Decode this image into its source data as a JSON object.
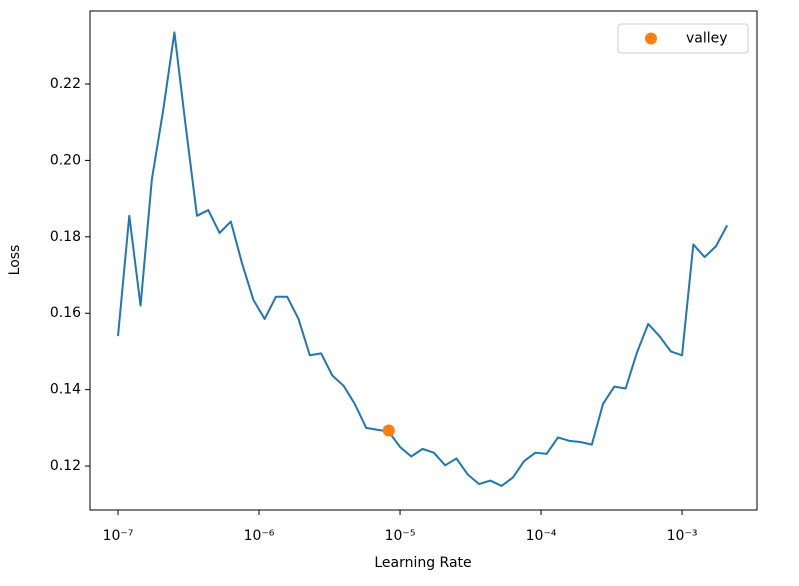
{
  "chart_data": {
    "type": "line",
    "xlabel": "Learning Rate",
    "ylabel": "Loss",
    "xscale": "log",
    "x": [
      1e-07,
      1.202e-07,
      1.445e-07,
      1.738e-07,
      2.089e-07,
      2.512e-07,
      3.02e-07,
      3.631e-07,
      4.365e-07,
      5.248e-07,
      6.31e-07,
      7.586e-07,
      9.12e-07,
      1.096e-06,
      1.318e-06,
      1.585e-06,
      1.905e-06,
      2.291e-06,
      2.754e-06,
      3.311e-06,
      3.981e-06,
      4.786e-06,
      5.754e-06,
      6.918e-06,
      8.318e-06,
      1e-05,
      1.202e-05,
      1.445e-05,
      1.738e-05,
      2.089e-05,
      2.512e-05,
      3.02e-05,
      3.631e-05,
      4.365e-05,
      5.248e-05,
      6.31e-05,
      7.586e-05,
      9.12e-05,
      0.0001096,
      0.0001318,
      0.0001585,
      0.0001905,
      0.0002291,
      0.0002754,
      0.0003311,
      0.0003981,
      0.0004786,
      0.0005754,
      0.0006918,
      0.0008318,
      0.001,
      0.001202,
      0.001445,
      0.001738,
      0.002089
    ],
    "series": [
      {
        "color": "#1f77b4",
        "values": [
          0.154,
          0.1855,
          0.162,
          0.195,
          0.213,
          0.2335,
          0.209,
          0.1855,
          0.187,
          0.181,
          0.184,
          0.173,
          0.1635,
          0.1585,
          0.1643,
          0.1643,
          0.1585,
          0.149,
          0.1495,
          0.1437,
          0.141,
          0.1362,
          0.13,
          0.1295,
          0.129,
          0.125,
          0.1225,
          0.1245,
          0.1235,
          0.1202,
          0.122,
          0.1178,
          0.1153,
          0.1162,
          0.1148,
          0.117,
          0.1213,
          0.1235,
          0.1232,
          0.1275,
          0.1266,
          0.1263,
          0.1256,
          0.1363,
          0.1408,
          0.1403,
          0.1497,
          0.1572,
          0.154,
          0.15,
          0.149,
          0.178,
          0.1747,
          0.1775,
          0.183
        ]
      },
      {
        "name": "valley",
        "color": "#ff7f0e",
        "x": [
          8.318e-06
        ],
        "values": [
          0.1293
        ]
      }
    ],
    "xlim": [
      6.33e-08,
      0.0034
    ],
    "ylim": [
      0.1085,
      0.2391
    ],
    "xticks": [
      {
        "value": 1e-07,
        "label": "10⁻⁷"
      },
      {
        "value": 1e-06,
        "label": "10⁻⁶"
      },
      {
        "value": 1e-05,
        "label": "10⁻⁵"
      },
      {
        "value": 0.0001,
        "label": "10⁻⁴"
      },
      {
        "value": 0.001,
        "label": "10⁻³"
      }
    ],
    "yticks": [
      0.12,
      0.14,
      0.16,
      0.18,
      {
        "value": 0.2,
        "label": "0.20"
      },
      0.22
    ],
    "legend": "upper right"
  }
}
